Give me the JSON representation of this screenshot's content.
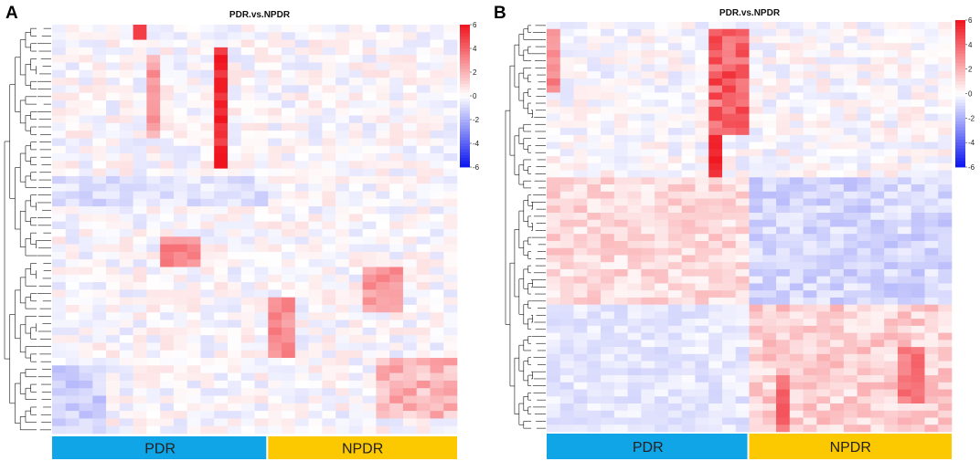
{
  "figure": {
    "colors": {
      "low": "#0a14f0",
      "mid": "#ffffff",
      "high": "#f0141e",
      "pdr_bar": "#0fa5e6",
      "npdr_bar": "#fcc800"
    }
  },
  "chart_data": [
    {
      "type": "heatmap",
      "panel_label": "A",
      "title": "PDR.vs.NPDR",
      "n_rows": 54,
      "groups": [
        {
          "label": "PDR",
          "n_samples": 16,
          "color": "#0fa5e6"
        },
        {
          "label": "NPDR",
          "n_samples": 14,
          "color": "#fcc800"
        }
      ],
      "color_scale": {
        "min": -6,
        "max": 6,
        "ticks": [
          6,
          4,
          2,
          0,
          -2,
          -4,
          -6
        ]
      },
      "dendrogram": "rows",
      "seed": 17
    },
    {
      "type": "heatmap",
      "panel_label": "B",
      "title": "PDR.vs.NPDR",
      "n_rows": 58,
      "groups": [
        {
          "label": "PDR",
          "n_samples": 15,
          "color": "#0fa5e6"
        },
        {
          "label": "NPDR",
          "n_samples": 15,
          "color": "#fcc800"
        }
      ],
      "color_scale": {
        "min": -6,
        "max": 6,
        "ticks": [
          6,
          4,
          2,
          0,
          -2,
          -4,
          -6
        ]
      },
      "dendrogram": "rows",
      "seed": 53
    }
  ]
}
